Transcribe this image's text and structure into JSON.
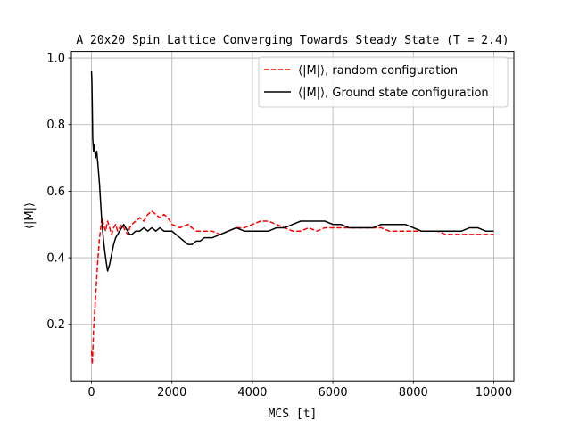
{
  "chart_data": {
    "type": "line",
    "title": "A 20x20 Spin Lattice Converging Towards Steady State (T = 2.4)",
    "xlabel": "MCS [t]",
    "ylabel": "⟨|M|⟩",
    "xlim": [
      -500,
      10500
    ],
    "ylim": [
      0.03,
      1.02
    ],
    "xticks": [
      0,
      2000,
      4000,
      6000,
      8000,
      10000
    ],
    "yticks": [
      0.2,
      0.4,
      0.6,
      0.8,
      1.0
    ],
    "xtick_labels": [
      "0",
      "2000",
      "4000",
      "6000",
      "8000",
      "10000"
    ],
    "ytick_labels": [
      "0.2",
      "0.4",
      "0.6",
      "0.8",
      "1.0"
    ],
    "grid": true,
    "legend_position": "top-right",
    "series": [
      {
        "name": "⟨|M|⟩, random configuration",
        "color": "#ff0000",
        "style": "dashed",
        "x": [
          0,
          20,
          50,
          100,
          150,
          200,
          260,
          300,
          350,
          400,
          450,
          500,
          550,
          600,
          650,
          700,
          750,
          800,
          850,
          900,
          950,
          1000,
          1100,
          1200,
          1300,
          1400,
          1500,
          1600,
          1700,
          1800,
          1900,
          2000,
          2200,
          2400,
          2600,
          2800,
          3000,
          3200,
          3400,
          3600,
          3800,
          4000,
          4200,
          4400,
          4600,
          4800,
          5000,
          5200,
          5400,
          5600,
          5800,
          6000,
          6200,
          6400,
          6600,
          6800,
          7000,
          7200,
          7400,
          7600,
          7800,
          8000,
          8200,
          8400,
          8600,
          8800,
          9000,
          9200,
          9400,
          9600,
          9800,
          10000
        ],
        "y": [
          0.12,
          0.08,
          0.18,
          0.28,
          0.38,
          0.46,
          0.52,
          0.5,
          0.48,
          0.51,
          0.49,
          0.47,
          0.49,
          0.5,
          0.48,
          0.49,
          0.5,
          0.49,
          0.48,
          0.47,
          0.49,
          0.5,
          0.51,
          0.52,
          0.51,
          0.53,
          0.54,
          0.53,
          0.52,
          0.53,
          0.52,
          0.5,
          0.49,
          0.5,
          0.48,
          0.48,
          0.48,
          0.47,
          0.48,
          0.49,
          0.49,
          0.5,
          0.51,
          0.51,
          0.5,
          0.49,
          0.48,
          0.48,
          0.49,
          0.48,
          0.49,
          0.49,
          0.49,
          0.49,
          0.49,
          0.49,
          0.49,
          0.49,
          0.48,
          0.48,
          0.48,
          0.48,
          0.48,
          0.48,
          0.48,
          0.47,
          0.47,
          0.47,
          0.47,
          0.47,
          0.47,
          0.47
        ]
      },
      {
        "name": "⟨|M|⟩, Ground state configuration",
        "color": "#000000",
        "style": "solid",
        "x": [
          0,
          10,
          20,
          30,
          50,
          70,
          100,
          130,
          160,
          200,
          250,
          300,
          350,
          400,
          450,
          500,
          550,
          600,
          650,
          700,
          750,
          800,
          850,
          900,
          950,
          1000,
          1100,
          1200,
          1300,
          1400,
          1500,
          1600,
          1700,
          1800,
          1900,
          2000,
          2100,
          2200,
          2300,
          2400,
          2500,
          2600,
          2700,
          2800,
          2900,
          3000,
          3200,
          3400,
          3600,
          3800,
          4000,
          4200,
          4400,
          4600,
          4800,
          5000,
          5200,
          5400,
          5500,
          5600,
          5800,
          6000,
          6200,
          6400,
          6600,
          6800,
          7000,
          7200,
          7400,
          7600,
          7800,
          8000,
          8200,
          8400,
          8600,
          8800,
          9000,
          9200,
          9400,
          9600,
          9800,
          10000
        ],
        "y": [
          0.96,
          0.93,
          0.85,
          0.76,
          0.72,
          0.74,
          0.7,
          0.72,
          0.68,
          0.62,
          0.52,
          0.45,
          0.4,
          0.36,
          0.38,
          0.41,
          0.44,
          0.46,
          0.47,
          0.48,
          0.49,
          0.5,
          0.49,
          0.48,
          0.47,
          0.47,
          0.48,
          0.48,
          0.49,
          0.48,
          0.49,
          0.48,
          0.49,
          0.48,
          0.48,
          0.48,
          0.47,
          0.46,
          0.45,
          0.44,
          0.44,
          0.45,
          0.45,
          0.46,
          0.46,
          0.46,
          0.47,
          0.48,
          0.49,
          0.48,
          0.48,
          0.48,
          0.48,
          0.49,
          0.49,
          0.5,
          0.51,
          0.51,
          0.51,
          0.51,
          0.51,
          0.5,
          0.5,
          0.49,
          0.49,
          0.49,
          0.49,
          0.5,
          0.5,
          0.5,
          0.5,
          0.49,
          0.48,
          0.48,
          0.48,
          0.48,
          0.48,
          0.48,
          0.49,
          0.49,
          0.48,
          0.48
        ]
      }
    ]
  }
}
